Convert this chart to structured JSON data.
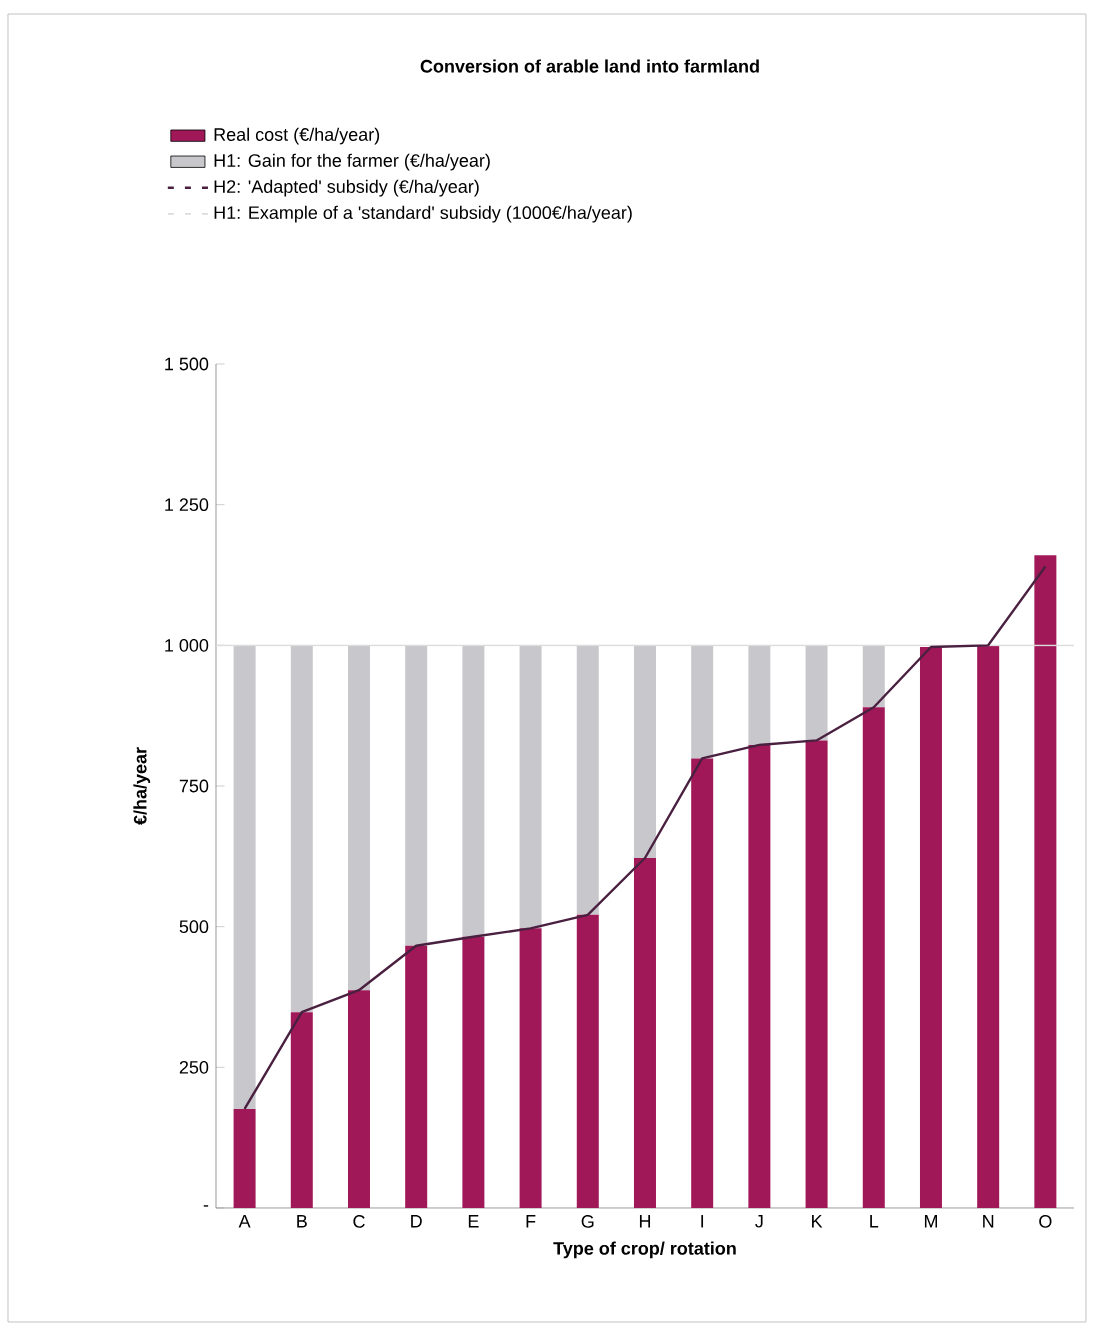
{
  "chart_data": {
    "type": "bar",
    "title": "Conversion of arable land into farmland",
    "xlabel": "Type of crop/ rotation",
    "ylabel": "€/ha/year",
    "categories": [
      "A",
      "B",
      "C",
      "D",
      "E",
      "F",
      "G",
      "H",
      "I",
      "J",
      "K",
      "L",
      "M",
      "N",
      "O"
    ],
    "stacked": true,
    "series": [
      {
        "name": "Real cost (€/ha/year)",
        "color": "#a01858",
        "values": [
          176,
          348,
          387,
          466,
          482,
          497,
          521,
          622,
          799,
          823,
          831,
          890,
          997,
          1000,
          1160
        ]
      },
      {
        "name": "H1: Gain for the farmer (€/ha/year)",
        "color": "#c8c8cc",
        "values": [
          824,
          652,
          613,
          534,
          518,
          503,
          479,
          378,
          201,
          177,
          169,
          110,
          0,
          0,
          0
        ]
      },
      {
        "name": "H2: 'Adapted' subsidy (€/ha/year)",
        "type": "line",
        "color": "#4a2040",
        "values": [
          176,
          348,
          387,
          466,
          482,
          497,
          521,
          622,
          799,
          823,
          831,
          890,
          997,
          1000,
          1140
        ]
      }
    ],
    "ylim": [
      0,
      1500
    ],
    "yticks": [
      {
        "value": 0,
        "label": "-"
      },
      {
        "value": 250,
        "label": "250"
      },
      {
        "value": 500,
        "label": "500"
      },
      {
        "value": 750,
        "label": "750"
      },
      {
        "value": 1000,
        "label": "1 000"
      },
      {
        "value": 1250,
        "label": "1 250"
      },
      {
        "value": 1500,
        "label": "1 500"
      }
    ],
    "ref_lines": [
      {
        "axis": "y",
        "value": 1000,
        "label": "H1: Example of a 'standard' subsidy (1000€/ha/year)",
        "color": "#dcdcdc"
      }
    ],
    "legend": "top",
    "grid": false
  }
}
